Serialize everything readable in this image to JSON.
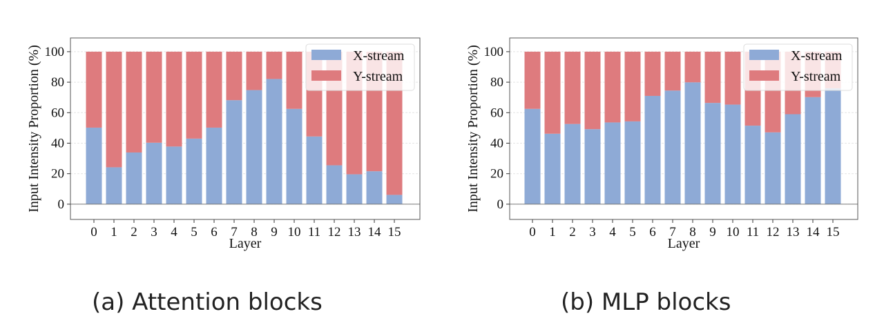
{
  "chart_data": [
    {
      "type": "bar",
      "stacked": true,
      "caption": "(a) Attention blocks",
      "categories": [
        "0",
        "1",
        "2",
        "3",
        "4",
        "5",
        "6",
        "7",
        "8",
        "9",
        "10",
        "11",
        "12",
        "13",
        "14",
        "15"
      ],
      "series": [
        {
          "name": "X-stream",
          "color": "#8eaad6",
          "values": [
            50.2,
            24.2,
            33.9,
            40.3,
            37.8,
            43.0,
            50.2,
            68.2,
            74.8,
            82.1,
            62.5,
            44.4,
            25.5,
            19.6,
            21.6,
            6.1
          ]
        },
        {
          "name": "Y-stream",
          "color": "#de7b7e",
          "values": [
            49.8,
            75.8,
            66.1,
            59.7,
            62.2,
            57.0,
            49.8,
            31.8,
            25.2,
            17.9,
            37.5,
            55.6,
            74.5,
            80.4,
            78.4,
            93.9
          ]
        }
      ],
      "xlabel": "Layer",
      "ylabel": "Input Intensity Proportion (%)",
      "ylim": [
        -10,
        109
      ],
      "yticks": [
        "0",
        "20",
        "40",
        "60",
        "80",
        "100"
      ],
      "grid": true,
      "legend": "top-right"
    },
    {
      "type": "bar",
      "stacked": true,
      "caption": "(b) MLP blocks",
      "categories": [
        "0",
        "1",
        "2",
        "3",
        "4",
        "5",
        "6",
        "7",
        "8",
        "9",
        "10",
        "11",
        "12",
        "13",
        "14",
        "15"
      ],
      "series": [
        {
          "name": "X-stream",
          "color": "#8eaad6",
          "values": [
            62.5,
            46.2,
            52.6,
            49.2,
            53.6,
            54.3,
            71.0,
            74.5,
            79.9,
            66.4,
            65.3,
            51.5,
            47.1,
            59.0,
            70.2,
            76.0
          ]
        },
        {
          "name": "Y-stream",
          "color": "#de7b7e",
          "values": [
            37.5,
            53.8,
            47.4,
            50.8,
            46.4,
            45.7,
            29.0,
            25.5,
            20.1,
            33.6,
            34.7,
            48.5,
            52.9,
            41.0,
            29.8,
            24.0
          ]
        }
      ],
      "xlabel": "Layer",
      "ylabel": "Input Intensity Proportion (%)",
      "ylim": [
        -10,
        109
      ],
      "yticks": [
        "0",
        "20",
        "40",
        "60",
        "80",
        "100"
      ],
      "grid": true,
      "legend": "top-right"
    }
  ]
}
